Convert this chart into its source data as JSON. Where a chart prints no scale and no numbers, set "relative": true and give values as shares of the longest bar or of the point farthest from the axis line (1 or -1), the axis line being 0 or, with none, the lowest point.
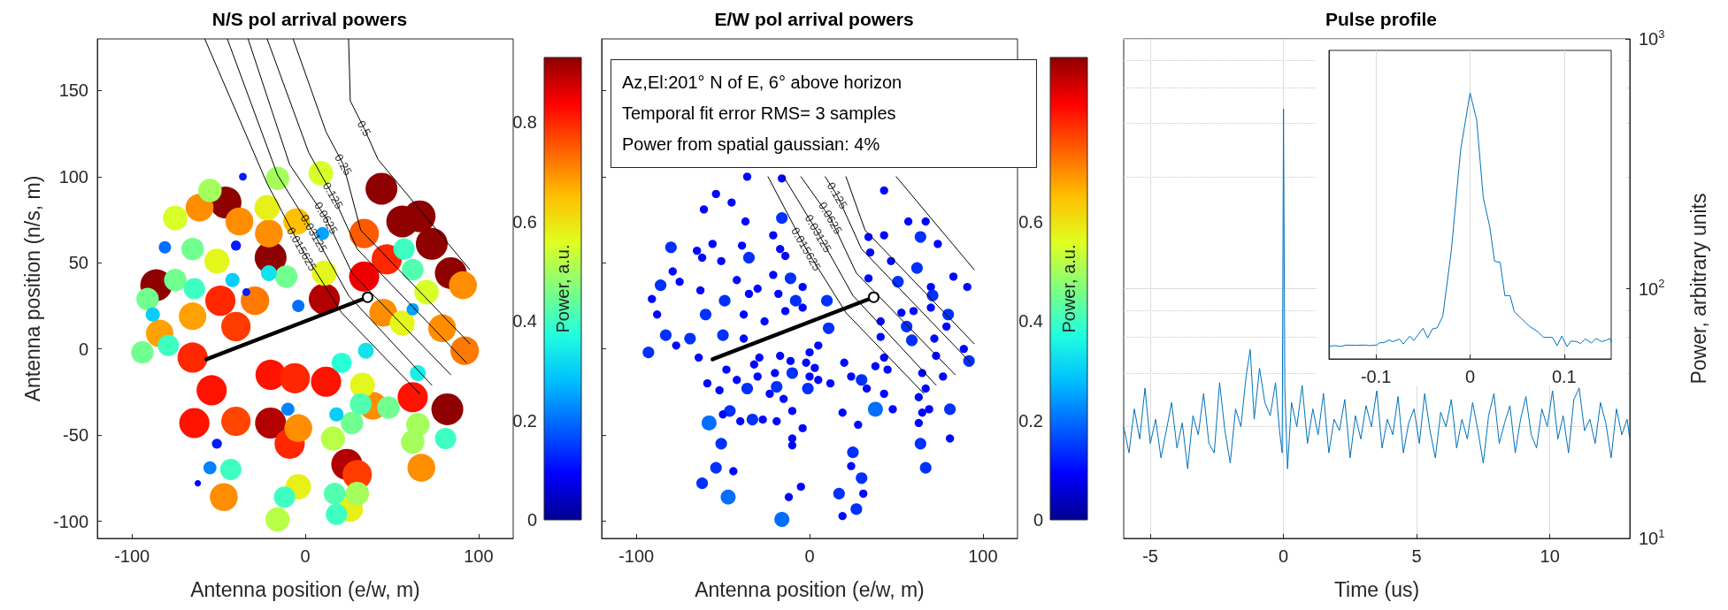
{
  "chart_data": [
    {
      "type": "bubble",
      "title": "N/S pol arrival powers",
      "xlabel": "Antenna position (e/w, m)",
      "ylabel": "Antenna position (n/s, m)",
      "clabel": "Power, a.u.",
      "clim": [
        0,
        0.93
      ],
      "cticks": [
        0,
        0.2,
        0.4,
        0.6,
        0.8
      ],
      "xlim": [
        -120,
        120
      ],
      "xticks": [
        -100,
        0,
        100
      ],
      "ylim": [
        -110,
        180
      ],
      "yticks": [
        -100,
        -50,
        0,
        50,
        100,
        150
      ],
      "series": [
        {
          "x": [
            44,
            56,
            66,
            73,
            84,
            82,
            91,
            -46,
            -20,
            -86,
            11,
            34,
            47,
            34,
            -65,
            -20,
            24,
            30,
            62,
            -54,
            -64,
            -40,
            -9,
            12,
            -20,
            -6,
            -49,
            -40,
            -29,
            -61,
            -38,
            -21,
            -5,
            67,
            -47,
            -4,
            -84,
            -65,
            92,
            79,
            45,
            39,
            -75,
            -51,
            -16,
            9,
            -22,
            -4,
            26,
            -16,
            33,
            56,
            70,
            11,
            65,
            -55,
            -65,
            -94,
            -91,
            -75,
            -64,
            -79,
            -11,
            21,
            57,
            62,
            81,
            -43,
            -12,
            18,
            17,
            32,
            48,
            27,
            62,
            16,
            30,
            -36,
            -81,
            -40,
            -42,
            -21,
            -4,
            -88,
            -51,
            -55,
            -62,
            18,
            62,
            -10,
            10,
            65,
            35,
            -34
          ],
          "values": [
            93,
            74,
            77,
            61,
            44,
            -35,
            37,
            85,
            53,
            37,
            29,
            42,
            52,
            67,
            -5,
            -43,
            -67,
            -73,
            -28,
            -24,
            -43,
            -42,
            -55,
            -19,
            -15,
            -17,
            28,
            13,
            28,
            82,
            74,
            67,
            74,
            -69,
            -86,
            -46,
            9,
            19,
            -1,
            12,
            21,
            -33,
            76,
            51,
            99,
            102,
            82,
            -80,
            -93,
            -99,
            -21,
            15,
            33,
            44,
            -44,
            92,
            58,
            -2,
            29,
            40,
            35,
            2,
            42,
            -8,
            58,
            46,
            -52,
            -70,
            -86,
            -96,
            -84,
            -32,
            -34,
            -43,
            -54,
            -52,
            -84,
            100,
            59,
            60,
            40,
            44,
            25,
            20,
            -55,
            -69,
            -78,
            -38,
            23,
            -35,
            67,
            -14,
            -1,
            33
          ],
          "colors": [
            "#8f0000",
            "#8f0000",
            "#8f0000",
            "#8f0000",
            "#8f0000",
            "#8f0000",
            "#ff8d00",
            "#8f0000",
            "#8f0000",
            "#8f0000",
            "#b30000",
            "#ef0000",
            "#ff2600",
            "#ff5a00",
            "#ff2600",
            "#b30000",
            "#b30000",
            "#ff3b00",
            "#ff1200",
            "#ff1200",
            "#ff1200",
            "#ff4500",
            "#ff2600",
            "#ff1200",
            "#ff1200",
            "#ff2600",
            "#ff2600",
            "#ff3b00",
            "#ff7900",
            "#ff8d00",
            "#ff8d00",
            "#ff8d00",
            "#ffc000",
            "#ff8d00",
            "#ff8d00",
            "#ff8d00",
            "#ffa100",
            "#ffa100",
            "#ff7900",
            "#ff8d00",
            "#ff8d00",
            "#ff8d00",
            "#d7ff28",
            "#e3f71c",
            "#a4ff5c",
            "#d7ff28",
            "#e7f018",
            "#e7f018",
            "#e7f018",
            "#b8ff47",
            "#e3f71c",
            "#e3f71c",
            "#d7ff28",
            "#e3f71c",
            "#a4ff5c",
            "#a4ff5c",
            "#71ff8f",
            "#71ff8f",
            "#71ff8f",
            "#71ff8f",
            "#3dffc2",
            "#3dffc2",
            "#71ff8f",
            "#28ffd7",
            "#3dffc2",
            "#52ffae",
            "#3dffc2",
            "#3dffc2",
            "#3dffc2",
            "#3dffc2",
            "#52ffae",
            "#52ffae",
            "#71ff8f",
            "#71ff8f",
            "#a4ff5c",
            "#b8ff47",
            "#a4ff5c",
            "#001cff",
            "#006eff",
            "#001cff",
            "#07cdf8",
            "#12e2ed",
            "#006eff",
            "#07cdf8",
            "#001cff",
            "#0083ff",
            "#0007ff",
            "#07cdf8",
            "#00a1ff",
            "#0083ff",
            "#00a1ff",
            "#18f0e7",
            "#12e2ed",
            "#001cff"
          ],
          "sizes": [
            1,
            1,
            1,
            1,
            1,
            1,
            0.77,
            1,
            1,
            1,
            0.95,
            0.9,
            0.9,
            0.85,
            0.9,
            0.95,
            0.95,
            0.85,
            0.9,
            0.9,
            0.9,
            0.85,
            0.9,
            0.9,
            0.9,
            0.9,
            0.9,
            0.85,
            0.8,
            0.77,
            0.77,
            0.77,
            0.7,
            0.77,
            0.77,
            0.77,
            0.75,
            0.75,
            0.8,
            0.77,
            0.77,
            0.77,
            0.6,
            0.62,
            0.55,
            0.6,
            0.64,
            0.64,
            0.64,
            0.58,
            0.62,
            0.62,
            0.6,
            0.62,
            0.55,
            0.55,
            0.5,
            0.5,
            0.5,
            0.5,
            0.45,
            0.45,
            0.5,
            0.4,
            0.45,
            0.47,
            0.45,
            0.45,
            0.45,
            0.45,
            0.47,
            0.47,
            0.5,
            0.5,
            0.55,
            0.58,
            0.55,
            0.06,
            0.15,
            0.1,
            0.2,
            0.25,
            0.15,
            0.2,
            0.1,
            0.17,
            0.04,
            0.2,
            0.15,
            0.17,
            0.17,
            0.25,
            0.25,
            0.06
          ]
        },
        {
          "type": "line",
          "color": "#000000",
          "x": [
            25,
            26,
            34,
            42,
            95
          ],
          "values": [
            180,
            144,
            128,
            110,
            46
          ]
        },
        {
          "type": "line",
          "color": "#000000",
          "x": [
            -7,
            12,
            22,
            32,
            95
          ],
          "values": [
            180,
            126,
            107,
            69,
            3
          ]
        },
        {
          "type": "line",
          "color": "#000000",
          "x": [
            -22,
            2,
            16,
            30,
            93
          ],
          "values": [
            180,
            114,
            89,
            58,
            -8
          ]
        },
        {
          "type": "line",
          "color": "#000000",
          "x": [
            -33,
            -9,
            12,
            27,
            84
          ],
          "values": [
            180,
            107,
            76,
            44,
            -15
          ]
        },
        {
          "type": "line",
          "color": "#000000",
          "x": [
            -45,
            -16,
            5,
            25,
            73
          ],
          "values": [
            180,
            101,
            67,
            31,
            -21
          ]
        },
        {
          "type": "line",
          "color": "#000000",
          "x": [
            -58,
            -22,
            -2,
            21,
            66
          ],
          "values": [
            180,
            96,
            58,
            21,
            -26
          ]
        },
        {
          "type": "line",
          "color": "#000000",
          "marker": "circle",
          "x": [
            -57,
            36
          ],
          "values": [
            -6,
            30
          ]
        }
      ],
      "annotations": [
        {
          "text": "0.5",
          "x": 34,
          "y": 128
        },
        {
          "text": "0.25",
          "x": 22,
          "y": 107
        },
        {
          "text": "0.125",
          "x": 16,
          "y": 89
        },
        {
          "text": "0.0625",
          "x": 12,
          "y": 76
        },
        {
          "text": "0.03125",
          "x": 5,
          "y": 67
        },
        {
          "text": "0.015625",
          "x": -2,
          "y": 58
        }
      ]
    },
    {
      "type": "bubble",
      "title": "E/W pol arrival powers",
      "xlabel": "Antenna position (e/w, m)",
      "clabel": "Power, a.u.",
      "clim": [
        0,
        0.93
      ],
      "cticks": [
        0,
        0.2,
        0.4,
        0.6
      ],
      "xlim": [
        -120,
        120
      ],
      "xticks": [
        -100,
        0,
        100
      ],
      "ylim": [
        -110,
        180
      ],
      "yticks": [
        -100,
        -50,
        0,
        50,
        100,
        150
      ],
      "tick_labels": "x",
      "series": [
        {
          "x": [
            -36,
            -16,
            -54,
            -45,
            -61,
            -37,
            -16,
            -21,
            -80,
            -65,
            -56,
            -39,
            -62,
            -51,
            -35,
            -17,
            -14,
            -79,
            -75,
            -86,
            -42,
            -21,
            -11,
            -4,
            -63,
            -30,
            -49,
            -35,
            -18,
            -8,
            -4,
            10,
            -91,
            -88,
            -60,
            -38,
            -26,
            -14,
            11,
            -83,
            -69,
            -50,
            -38,
            -93,
            -77,
            -64,
            -48,
            -29,
            -17,
            0,
            5,
            -32,
            -11,
            -2,
            3,
            -59,
            -42,
            -30,
            -20,
            -10,
            0,
            5,
            12,
            20,
            24,
            30,
            33,
            38,
            43,
            45,
            -36,
            -19,
            -1,
            -52,
            -23,
            -15,
            -46,
            -50,
            -58,
            -40,
            -33,
            -27,
            -10,
            -4,
            -19,
            19,
            28,
            38,
            43,
            48,
            63,
            67,
            65,
            69,
            63,
            81,
            -10,
            -51,
            -10,
            25,
            24,
            30,
            -54,
            -44,
            -62,
            -47,
            -5,
            -12,
            17,
            31,
            19,
            27,
            -16,
            64,
            81,
            67,
            43,
            57,
            64,
            67,
            74,
            43,
            34,
            35,
            47,
            62,
            83,
            91,
            51,
            34,
            70,
            71,
            56,
            53,
            60,
            70,
            80,
            41,
            41,
            59,
            72,
            79,
            89,
            92,
            73,
            77,
            65
          ],
          "values": [
            100,
            99,
            90,
            85,
            81,
            74,
            76,
            66,
            59,
            57,
            61,
            60,
            53,
            51,
            53,
            58,
            54,
            45,
            39,
            37,
            40,
            43,
            41,
            36,
            34,
            35,
            28,
            32,
            32,
            28,
            24,
            28,
            29,
            20,
            20,
            20,
            16,
            22,
            12,
            8,
            6,
            8,
            6,
            -2,
            2,
            -5,
            -12,
            -5,
            -4,
            -2,
            2,
            -9,
            -7,
            -8,
            -11,
            -20,
            -18,
            -16,
            -14,
            -14,
            -16,
            -18,
            -20,
            -8,
            -16,
            -18,
            -23,
            -10,
            -5,
            -12,
            -23,
            -22,
            -23,
            -24,
            -26,
            -29,
            -36,
            -38,
            -43,
            -42,
            -41,
            -41,
            -36,
            -46,
            -42,
            -37,
            -44,
            -35,
            -26,
            -35,
            -28,
            -23,
            -37,
            -35,
            -43,
            -35,
            -52,
            -55,
            -56,
            -60,
            -68,
            -75,
            -69,
            -71,
            -78,
            -86,
            -80,
            -86,
            -84,
            -84,
            -97,
            -93,
            -99,
            -55,
            -52,
            -69,
            92,
            74,
            65,
            74,
            61,
            66,
            65,
            56,
            51,
            47,
            42,
            36,
            39,
            41,
            36,
            31,
            13,
            21,
            22,
            24,
            20,
            16,
            7,
            5,
            6,
            13,
            0,
            -7,
            -4,
            -16,
            -14
          ],
          "sizes": [
            0.3,
            0.3,
            0.3,
            0.3,
            0.3,
            0.3,
            0.6,
            0.3,
            0.6,
            0.3,
            0.3,
            0.3,
            0.3,
            0.3,
            0.6,
            0.3,
            0.3,
            0.3,
            0.3,
            0.6,
            0.3,
            0.3,
            0.6,
            0.3,
            0.3,
            0.3,
            0.6,
            0.3,
            0.3,
            0.6,
            0.3,
            0.6,
            0.3,
            0.3,
            0.6,
            0.3,
            0.3,
            0.3,
            0.6,
            0.6,
            0.6,
            0.6,
            0.3,
            0.6,
            0.3,
            0.3,
            0.3,
            0.3,
            0.3,
            0.3,
            0.3,
            0.3,
            0.3,
            0.3,
            0.3,
            0.3,
            0.3,
            0.3,
            0.3,
            0.6,
            0.3,
            0.3,
            0.3,
            0.3,
            0.3,
            0.6,
            0.3,
            0.3,
            0.3,
            0.3,
            0.6,
            0.6,
            0.6,
            0.3,
            0.3,
            0.3,
            0.6,
            0.3,
            1,
            0.3,
            0.6,
            0.3,
            0.3,
            0.3,
            0.3,
            0.3,
            0.3,
            1,
            0.3,
            0.3,
            0.3,
            0.3,
            0.3,
            0.3,
            0.3,
            0.6,
            0.3,
            0.6,
            0.3,
            0.6,
            0.3,
            0.6,
            0.6,
            0.3,
            0.6,
            1,
            0.3,
            0.3,
            0.6,
            0.3,
            0.3,
            0.6,
            1,
            0.6,
            0.3,
            0.6,
            0.3,
            0.3,
            0.6,
            0.3,
            0.3,
            0.3,
            0.3,
            0.3,
            0.3,
            0.6,
            0.3,
            0.3,
            0.6,
            0.3,
            0.3,
            0.6,
            0.6,
            0.3,
            0.3,
            0.3,
            0.6,
            0.3,
            0.3,
            0.6,
            0.3,
            0.3,
            0.3,
            0.6,
            0.3,
            0.3,
            0.3
          ],
          "colors": [
            "#0007ff",
            "#0007ff",
            "#0007ff",
            "#0007ff",
            "#0007ff",
            "#0007ff",
            "#0030ff",
            "#0007ff",
            "#0030ff",
            "#0007ff",
            "#0007ff",
            "#0007ff",
            "#0007ff",
            "#0007ff",
            "#0030ff",
            "#0007ff",
            "#0007ff",
            "#0007ff",
            "#0007ff",
            "#0030ff",
            "#0007ff",
            "#0007ff",
            "#0030ff",
            "#0007ff",
            "#0007ff",
            "#0007ff",
            "#0030ff",
            "#0007ff",
            "#0007ff",
            "#0030ff",
            "#0007ff",
            "#0030ff",
            "#0007ff",
            "#0007ff",
            "#0030ff",
            "#0007ff",
            "#0007ff",
            "#0007ff",
            "#0030ff",
            "#0030ff",
            "#0030ff",
            "#0030ff",
            "#0007ff",
            "#0030ff",
            "#0007ff",
            "#0007ff",
            "#0007ff",
            "#0007ff",
            "#0007ff",
            "#0007ff",
            "#0007ff",
            "#0007ff",
            "#0007ff",
            "#0007ff",
            "#0007ff",
            "#0007ff",
            "#0007ff",
            "#0007ff",
            "#0007ff",
            "#0030ff",
            "#0007ff",
            "#0007ff",
            "#0007ff",
            "#0007ff",
            "#0007ff",
            "#0030ff",
            "#0007ff",
            "#0007ff",
            "#0007ff",
            "#0007ff",
            "#0030ff",
            "#0030ff",
            "#0030ff",
            "#0007ff",
            "#0007ff",
            "#0007ff",
            "#0030ff",
            "#0007ff",
            "#006eff",
            "#0007ff",
            "#0030ff",
            "#0007ff",
            "#0007ff",
            "#0007ff",
            "#0007ff",
            "#0007ff",
            "#0007ff",
            "#006eff",
            "#0007ff",
            "#0007ff",
            "#0007ff",
            "#0007ff",
            "#0007ff",
            "#0007ff",
            "#0007ff",
            "#0030ff",
            "#0007ff",
            "#0030ff",
            "#0007ff",
            "#0030ff",
            "#0007ff",
            "#0030ff",
            "#0030ff",
            "#0007ff",
            "#0030ff",
            "#006eff",
            "#0007ff",
            "#0007ff",
            "#0030ff",
            "#0007ff",
            "#0007ff",
            "#0030ff",
            "#006eff",
            "#0030ff",
            "#0007ff",
            "#0030ff",
            "#0007ff",
            "#0007ff",
            "#0030ff",
            "#0007ff",
            "#0007ff",
            "#0007ff",
            "#0007ff",
            "#0007ff",
            "#0007ff",
            "#0030ff",
            "#0007ff",
            "#0007ff",
            "#0030ff",
            "#0007ff",
            "#0007ff",
            "#0030ff",
            "#0030ff",
            "#0007ff",
            "#0007ff",
            "#0007ff",
            "#0030ff",
            "#0007ff",
            "#0007ff",
            "#0030ff",
            "#0007ff",
            "#0007ff",
            "#0007ff",
            "#0030ff",
            "#0007ff",
            "#0007ff",
            "#0007ff"
          ]
        },
        {
          "type": "line",
          "color": "#000000",
          "x": [
            50,
            95
          ],
          "values": [
            100,
            46
          ]
        },
        {
          "type": "line",
          "color": "#000000",
          "x": [
            21,
            32,
            95
          ],
          "values": [
            100,
            69,
            3
          ]
        },
        {
          "type": "line",
          "color": "#000000",
          "x": [
            9,
            16,
            30,
            93
          ],
          "values": [
            100,
            89,
            58,
            -8
          ]
        },
        {
          "type": "line",
          "color": "#000000",
          "x": [
            -5,
            12,
            27,
            84
          ],
          "values": [
            100,
            76,
            44,
            -15
          ]
        },
        {
          "type": "line",
          "color": "#000000",
          "x": [
            -15,
            5,
            25,
            73
          ],
          "values": [
            100,
            67,
            31,
            -21
          ]
        },
        {
          "type": "line",
          "color": "#000000",
          "x": [
            -24,
            -2,
            21,
            66
          ],
          "values": [
            100,
            58,
            21,
            -26
          ]
        },
        {
          "type": "line",
          "color": "#000000",
          "marker": "circle",
          "x": [
            -56,
            37
          ],
          "values": [
            -6,
            30
          ]
        }
      ],
      "annotations": [
        "Az,El:201° N of E, 6° above horizon",
        "Temporal fit error RMS= 3 samples",
        "Power from spatial gaussian: 4%",
        {
          "text": "0.125",
          "x": 16,
          "y": 89
        },
        {
          "text": "0.0625",
          "x": 12,
          "y": 76
        },
        {
          "text": "0.03125",
          "x": 5,
          "y": 67
        },
        {
          "text": "0.015625",
          "x": -2,
          "y": 58
        }
      ]
    },
    {
      "type": "line",
      "title": "Pulse profile",
      "xlabel": "Time (us)",
      "ylabel": "Power, arbitrary units",
      "xlim": [
        -6,
        13
      ],
      "xticks": [
        -5,
        0,
        5,
        10
      ],
      "ylim": [
        10,
        1000
      ],
      "yticks": [
        {
          "value": 10,
          "label": "10$^{1}$"
        },
        {
          "value": 100,
          "label": "10$^{2}$"
        },
        {
          "value": 1000,
          "label": "10$^{3}$"
        }
      ],
      "log": "y",
      "grid": true,
      "x": [
        -6,
        -5.8,
        -5.6,
        -5.4,
        -5.2,
        -5,
        -4.8,
        -4.6,
        -4.4,
        -4.2,
        -4,
        -3.8,
        -3.6,
        -3.4,
        -3.2,
        -3,
        -2.8,
        -2.6,
        -2.4,
        -2.2,
        -2,
        -1.8,
        -1.6,
        -1.4,
        -1.25,
        -1.1,
        -0.9,
        -0.7,
        -0.5,
        -0.3,
        -0.15,
        -0.05,
        0,
        0.05,
        0.15,
        0.3,
        0.5,
        0.7,
        0.9,
        1.1,
        1.3,
        1.5,
        1.7,
        1.9,
        2.1,
        2.3,
        2.5,
        2.7,
        2.9,
        3.1,
        3.3,
        3.5,
        3.7,
        3.9,
        4.1,
        4.3,
        4.5,
        4.7,
        4.9,
        5.1,
        5.3,
        5.5,
        5.7,
        5.9,
        6.1,
        6.3,
        6.5,
        6.7,
        6.9,
        7.1,
        7.3,
        7.5,
        7.7,
        7.9,
        8.1,
        8.3,
        8.5,
        8.7,
        8.9,
        9.1,
        9.3,
        9.5,
        9.7,
        9.9,
        10.1,
        10.3,
        10.5,
        10.7,
        10.9,
        11.1,
        11.3,
        11.5,
        11.7,
        11.9,
        12.1,
        12.3,
        12.5,
        12.7,
        12.9,
        13
      ],
      "series": [
        {
          "color": "#0072bd",
          "values": [
            28,
            22,
            33,
            25,
            40,
            24,
            30,
            21,
            27,
            35,
            23,
            29,
            19,
            31,
            26,
            38,
            24,
            22,
            42,
            27,
            20,
            33,
            28,
            45,
            57,
            30,
            48,
            35,
            31,
            42,
            27,
            22,
            525,
            40,
            19,
            35,
            28,
            41,
            24,
            33,
            26,
            38,
            22,
            30,
            27,
            36,
            21,
            31,
            25,
            34,
            28,
            39,
            23,
            30,
            26,
            37,
            22,
            29,
            33,
            24,
            38,
            27,
            21,
            32,
            28,
            36,
            23,
            30,
            25,
            35,
            27,
            20,
            31,
            38,
            24,
            29,
            34,
            22,
            30,
            37,
            26,
            23,
            33,
            28,
            39,
            25,
            31,
            22,
            36,
            40,
            27,
            30,
            24,
            35,
            29,
            21,
            33,
            26,
            30,
            25
          ]
        }
      ]
    },
    {
      "type": "line",
      "xlim": [
        -0.15,
        0.15
      ],
      "xticks": [
        -0.1,
        0,
        0.1
      ],
      "relative": true,
      "grid": "x",
      "x": [
        -0.15,
        -0.143,
        -0.1375,
        -0.132,
        -0.122,
        -0.111,
        -0.107,
        -0.101,
        -0.1,
        -0.096,
        -0.092,
        -0.086,
        -0.082,
        -0.075,
        -0.071,
        -0.064,
        -0.06,
        -0.05,
        -0.045,
        -0.04,
        -0.035,
        -0.029,
        -0.02,
        -0.01,
        0,
        0.007,
        0.014,
        0.021,
        0.026,
        0.032,
        0.037,
        0.0425,
        0.047,
        0.054,
        0.063,
        0.072,
        0.078,
        0.0875,
        0.0925,
        0.0975,
        0.103,
        0.107,
        0.113,
        0.1175,
        0.1225,
        0.129,
        0.134,
        0.14,
        0.145,
        0.149,
        0.15
      ],
      "series": [
        {
          "color": "#0072bd",
          "values": [
            0.048,
            0.05,
            0.047,
            0.052,
            0.051,
            0.052,
            0.05,
            0.052,
            0.05,
            0.061,
            0.061,
            0.071,
            0.065,
            0.075,
            0.056,
            0.086,
            0.069,
            0.115,
            0.079,
            0.113,
            0.117,
            0.161,
            0.405,
            0.787,
            1,
            0.898,
            0.607,
            0.495,
            0.367,
            0.363,
            0.238,
            0.238,
            0.177,
            0.154,
            0.123,
            0.102,
            0.081,
            0.081,
            0.05,
            0.086,
            0.046,
            0.067,
            0.065,
            0.058,
            0.075,
            0.06,
            0.077,
            0.065,
            0.071,
            0.077,
            0.063
          ]
        }
      ]
    }
  ]
}
